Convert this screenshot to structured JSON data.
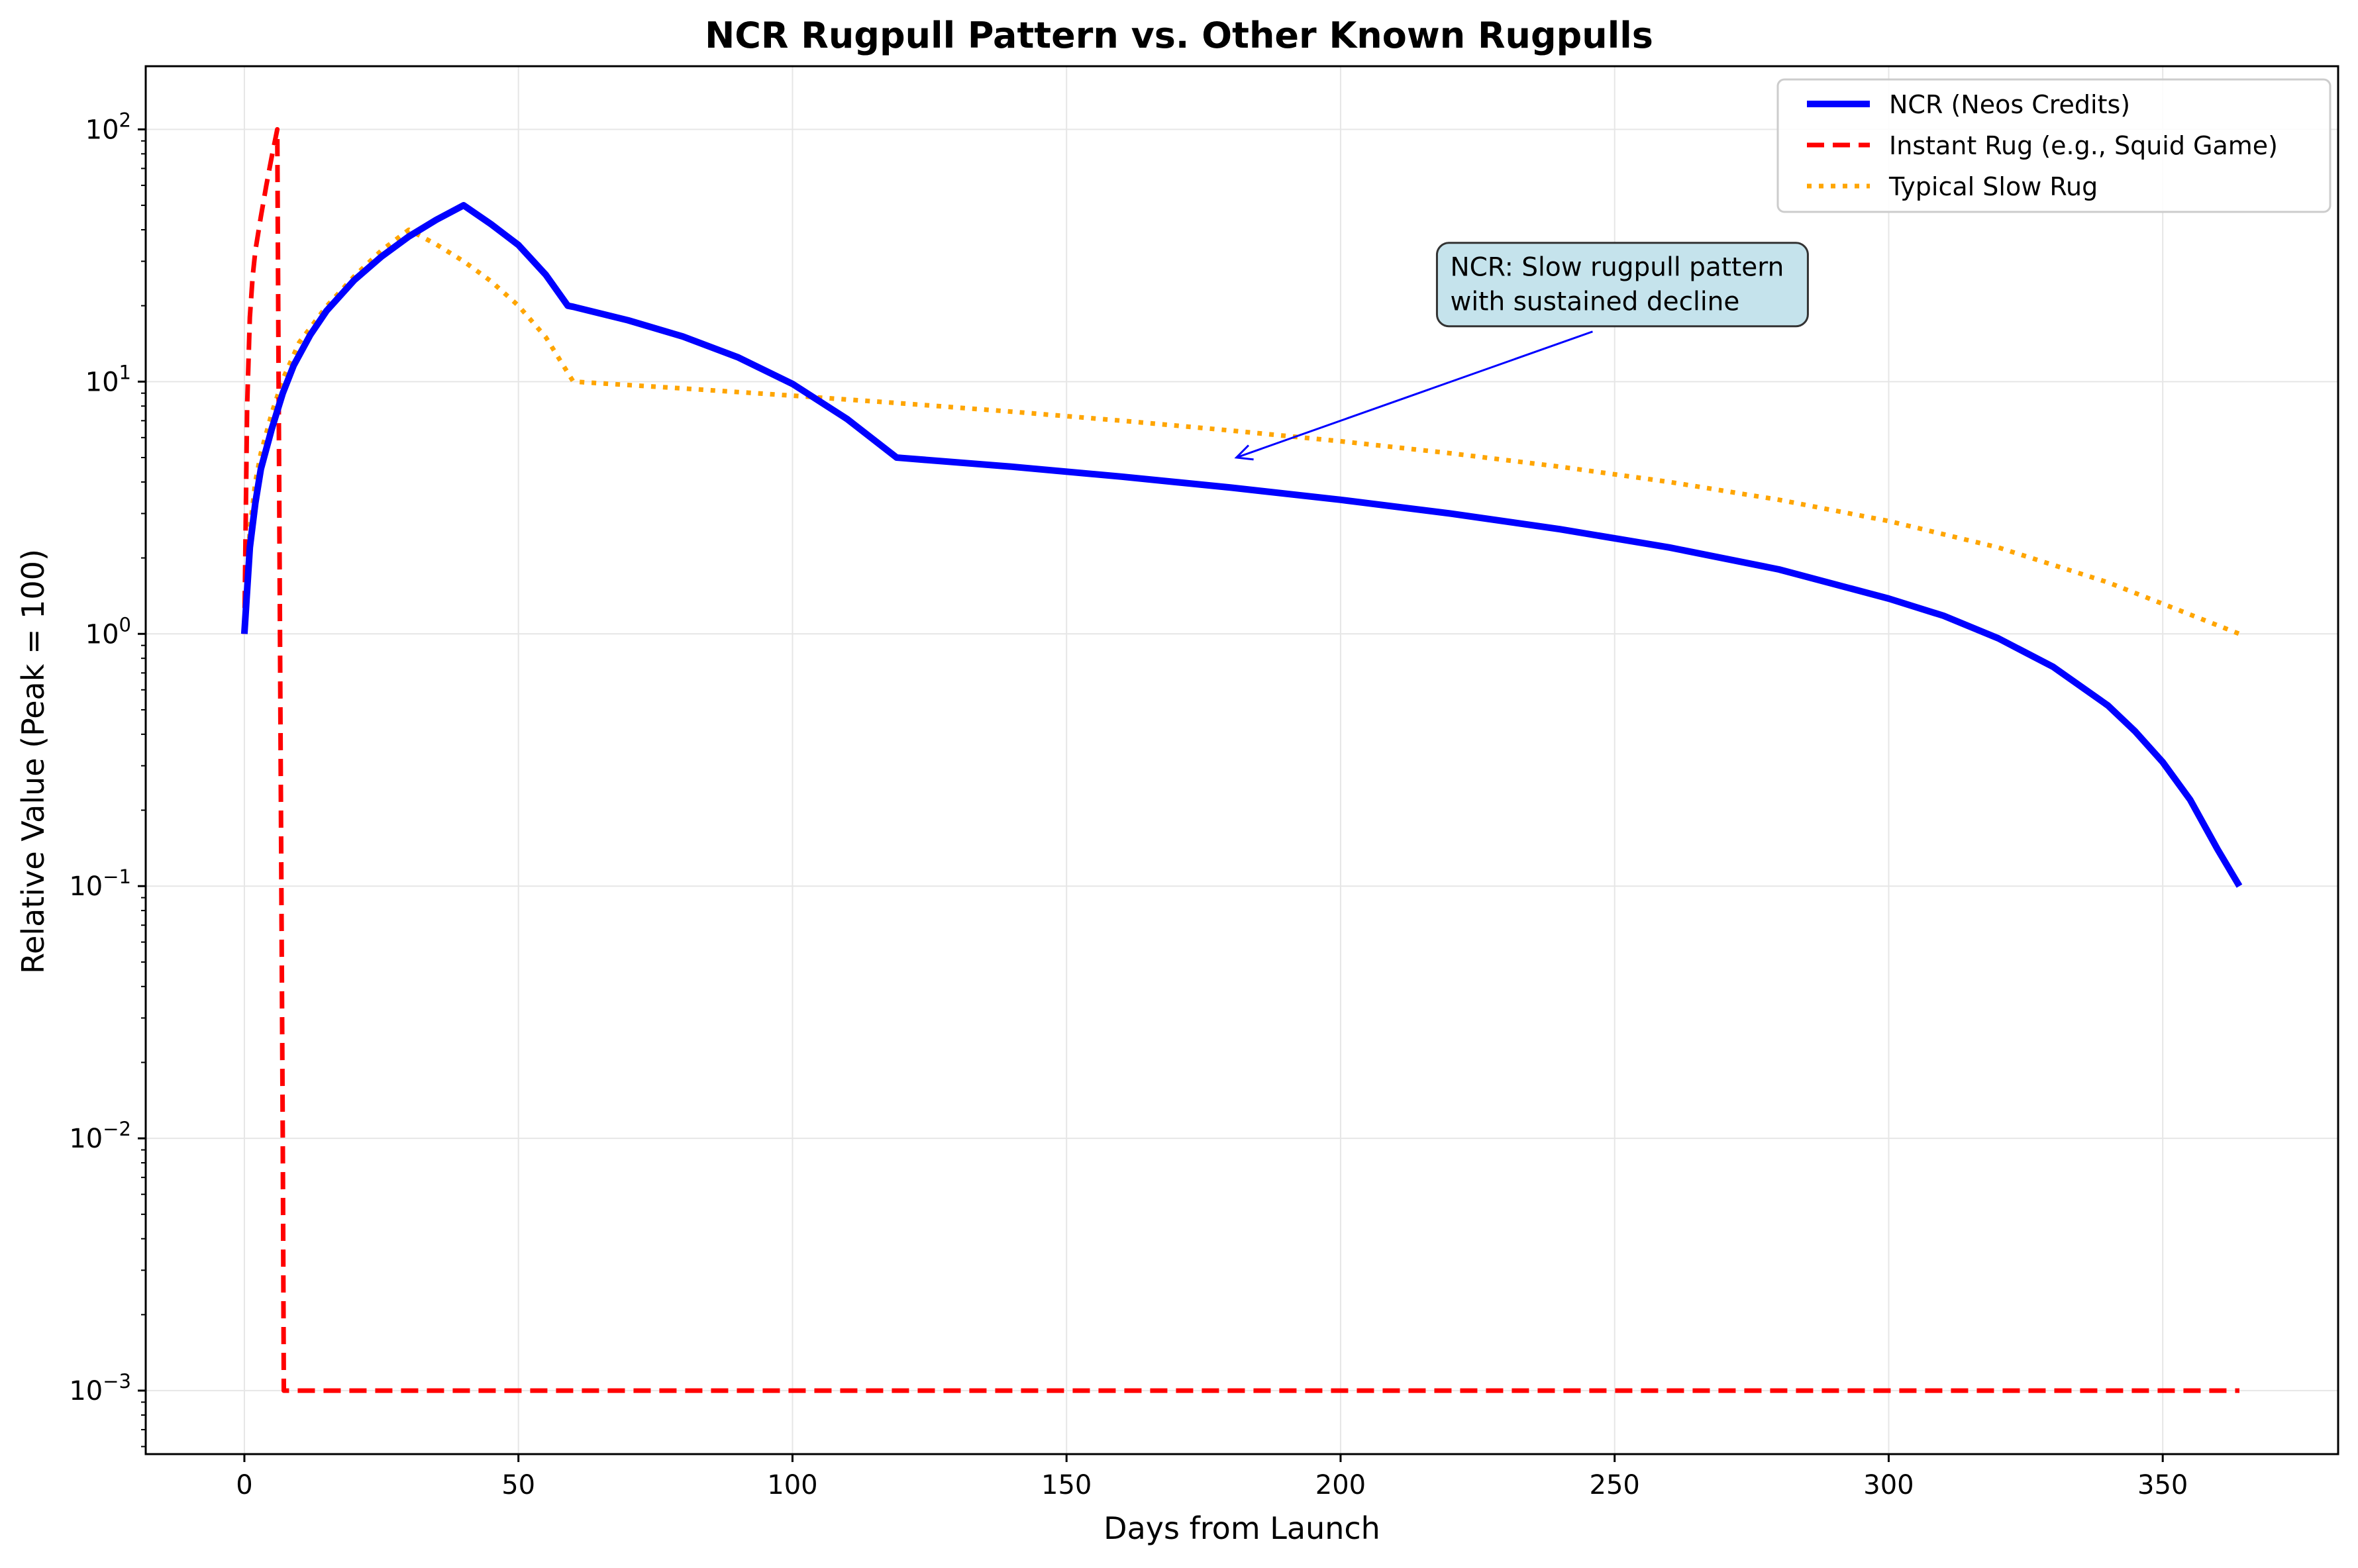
{
  "chart_data": {
    "type": "line",
    "title": "NCR Rugpull Pattern vs. Other Known Rugpulls",
    "xlabel": "Days from Launch",
    "ylabel": "Relative Value (Peak = 100)",
    "xlim": [
      -18,
      382
    ],
    "ylim": [
      0.00056,
      178
    ],
    "yscale": "log",
    "grid": true,
    "legend_position": "top-right",
    "x_ticks": [
      0,
      50,
      100,
      150,
      200,
      250,
      300,
      350
    ],
    "x_tick_labels": [
      "0",
      "50",
      "100",
      "150",
      "200",
      "250",
      "300",
      "350"
    ],
    "y_ticks": [
      {
        "value": 0.001,
        "base": "10",
        "exponent": "−3"
      },
      {
        "value": 0.01,
        "base": "10",
        "exponent": "−2"
      },
      {
        "value": 0.1,
        "base": "10",
        "exponent": "−1"
      },
      {
        "value": 1,
        "base": "10",
        "exponent": "0"
      },
      {
        "value": 10,
        "base": "10",
        "exponent": "1"
      },
      {
        "value": 100,
        "base": "10",
        "exponent": "2"
      }
    ],
    "series": [
      {
        "name": "NCR (Neos Credits)",
        "color": "#0000ff",
        "style": "solid",
        "x": [
          0,
          1,
          2,
          3,
          5,
          7,
          9,
          12,
          15,
          20,
          25,
          30,
          35,
          40,
          45,
          50,
          55,
          59,
          60,
          70,
          80,
          90,
          100,
          110,
          119,
          120,
          140,
          160,
          180,
          200,
          220,
          240,
          260,
          280,
          300,
          310,
          320,
          330,
          340,
          345,
          350,
          355,
          360,
          364
        ],
        "y": [
          1,
          2.2,
          3.3,
          4.5,
          6.5,
          9,
          11.6,
          15.3,
          19.1,
          25.2,
          31.3,
          37.6,
          43.8,
          50,
          42.1,
          34.8,
          26.5,
          20,
          19.8,
          17.5,
          15.1,
          12.5,
          9.8,
          7.1,
          5,
          4.98,
          4.6,
          4.2,
          3.8,
          3.4,
          3,
          2.6,
          2.2,
          1.8,
          1.38,
          1.18,
          0.96,
          0.74,
          0.52,
          0.41,
          0.31,
          0.22,
          0.14,
          0.1
        ]
      },
      {
        "name": "Instant Rug (e.g., Squid Game)",
        "color": "#ff0000",
        "style": "dashed",
        "x": [
          0,
          0.5,
          1,
          1.5,
          2,
          3,
          4,
          5,
          5.8,
          6,
          6.5,
          7,
          7.2,
          8,
          50,
          100,
          150,
          200,
          250,
          300,
          350,
          364
        ],
        "y": [
          1,
          8,
          18,
          26,
          33,
          45,
          60,
          78,
          95,
          100,
          1,
          0.01,
          0.001,
          0.001,
          0.001,
          0.001,
          0.001,
          0.001,
          0.001,
          0.001,
          0.001,
          0.001
        ]
      },
      {
        "name": "Typical Slow Rug",
        "color": "#ffa500",
        "style": "dotted",
        "x": [
          0,
          1,
          2,
          3,
          5,
          7,
          10,
          15,
          20,
          25,
          30,
          35,
          40,
          45,
          50,
          55,
          60,
          80,
          100,
          120,
          140,
          160,
          180,
          200,
          220,
          240,
          260,
          280,
          300,
          320,
          340,
          364
        ],
        "y": [
          1,
          2.6,
          4,
          5.2,
          7.5,
          10.2,
          14.3,
          19.9,
          26.1,
          33.1,
          40,
          35,
          30,
          25,
          20,
          15,
          10,
          9.4,
          8.8,
          8.2,
          7.6,
          7,
          6.4,
          5.8,
          5.2,
          4.6,
          4,
          3.4,
          2.8,
          2.2,
          1.6,
          1
        ]
      }
    ],
    "annotation": {
      "text_lines": [
        "NCR: Slow rugpull pattern",
        "with sustained decline"
      ],
      "xy": [
        181,
        5
      ],
      "text_xy": [
        220,
        25
      ]
    },
    "colors": {
      "annotation_box_fill": "#c5e3ec",
      "annotation_box_edge": "#333333",
      "grid": "#e6e6e6"
    }
  }
}
